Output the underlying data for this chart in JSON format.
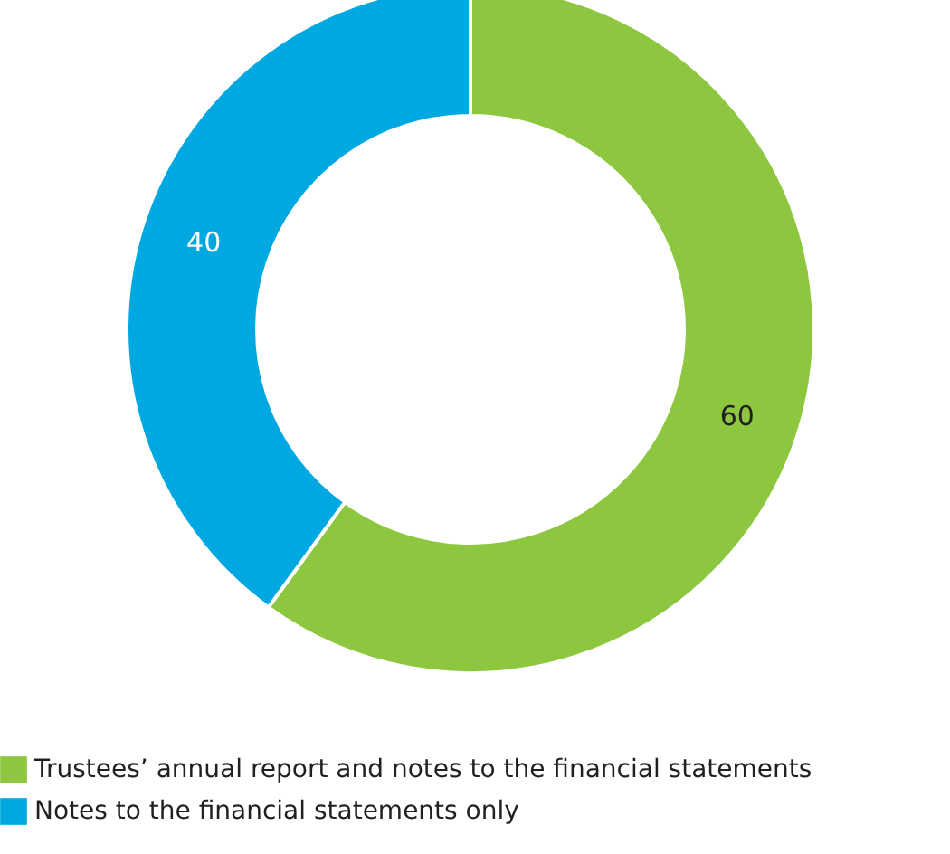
{
  "chart_data": {
    "type": "donut",
    "categories": [
      "Trustees’ annual report and notes to the financial statements",
      "Notes to the financial statements only"
    ],
    "values": [
      60,
      40
    ],
    "colors": [
      "#8dc63f",
      "#00a8e1"
    ],
    "data_labels": true,
    "legend": "bottom"
  }
}
